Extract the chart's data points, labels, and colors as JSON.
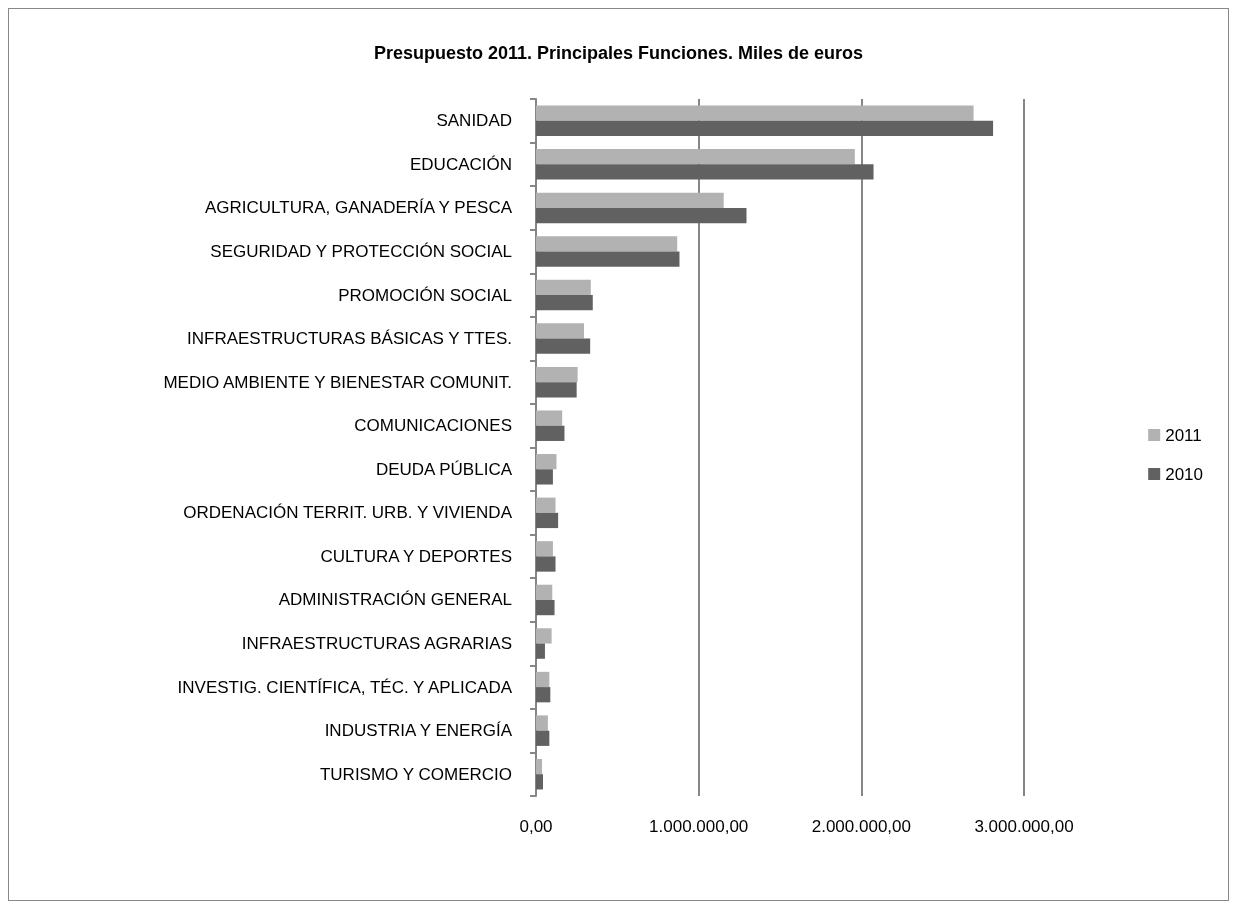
{
  "chart_data": {
    "type": "bar",
    "orientation": "horizontal",
    "title": "Presupuesto 2011. Principales Funciones. Miles de euros",
    "categories": [
      "SANIDAD",
      "EDUCACIÓN",
      "AGRICULTURA, GANADERÍA Y PESCA",
      "SEGURIDAD Y PROTECCIÓN SOCIAL",
      "PROMOCIÓN SOCIAL",
      "INFRAESTRUCTURAS BÁSICAS Y TTES.",
      "MEDIO AMBIENTE Y BIENESTAR COMUNIT.",
      "COMUNICACIONES",
      "DEUDA PÚBLICA",
      "ORDENACIÓN TERRIT. URB. Y VIVIENDA",
      "CULTURA Y DEPORTES",
      "ADMINISTRACIÓN GENERAL",
      "INFRAESTRUCTURAS AGRARIAS",
      "INVESTIG. CIENTÍFICA, TÉC. Y APLICADA",
      "INDUSTRIA Y ENERGÍA",
      "TURISMO Y COMERCIO"
    ],
    "series": [
      {
        "name": "2011",
        "color": "#b2b2b2",
        "values": [
          2690000,
          1960000,
          1154000,
          868000,
          337000,
          295000,
          256000,
          161000,
          126000,
          120000,
          104000,
          100000,
          96000,
          82000,
          73000,
          37000
        ]
      },
      {
        "name": "2010",
        "color": "#616161",
        "values": [
          2810000,
          2075000,
          1294000,
          882000,
          349000,
          333000,
          250000,
          175000,
          104000,
          136000,
          120000,
          114000,
          55000,
          88000,
          82000,
          43000
        ]
      }
    ],
    "xlim": [
      0,
      3000000
    ],
    "xticks": [
      {
        "value": 0,
        "label": "0,00"
      },
      {
        "value": 1000000,
        "label": "1.000.000,00"
      },
      {
        "value": 2000000,
        "label": "2.000.000,00"
      },
      {
        "value": 3000000,
        "label": "3.000.000,00"
      }
    ],
    "grid": "x",
    "legend": "right"
  }
}
